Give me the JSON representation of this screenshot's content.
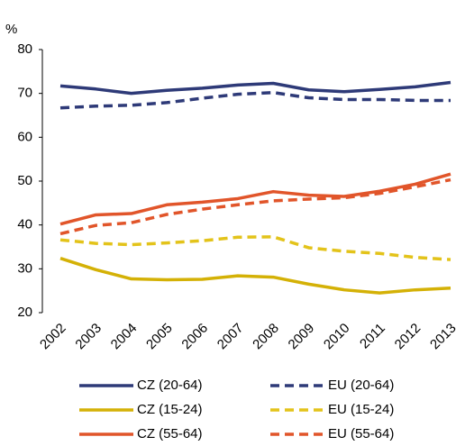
{
  "chart_data": {
    "type": "line",
    "y_label": "%",
    "categories": [
      "2002",
      "2003",
      "2004",
      "2005",
      "2006",
      "2007",
      "2008",
      "2009",
      "2010",
      "2011",
      "2012",
      "2013"
    ],
    "ylim": [
      20,
      80
    ],
    "yticks": [
      20,
      30,
      40,
      50,
      60,
      70,
      80
    ],
    "grid": false,
    "legend": "bottom",
    "series": [
      {
        "name": "CZ (20-64)",
        "color": "#2e3a78",
        "dash": false,
        "values": [
          71.7,
          71.0,
          70.0,
          70.7,
          71.2,
          71.9,
          72.3,
          70.8,
          70.4,
          70.9,
          71.5,
          72.5
        ]
      },
      {
        "name": "EU (20-64)",
        "color": "#2e3a78",
        "dash": true,
        "values": [
          66.7,
          67.1,
          67.3,
          67.9,
          68.9,
          69.8,
          70.2,
          69.0,
          68.6,
          68.6,
          68.4,
          68.4
        ]
      },
      {
        "name": "CZ (15-24)",
        "color": "#d4b106",
        "dash": false,
        "values": [
          32.4,
          29.8,
          27.7,
          27.5,
          27.6,
          28.4,
          28.1,
          26.5,
          25.2,
          24.5,
          25.2,
          25.6
        ]
      },
      {
        "name": "EU (15-24)",
        "color": "#e3c31a",
        "dash": true,
        "values": [
          36.6,
          35.8,
          35.5,
          35.9,
          36.4,
          37.2,
          37.3,
          34.8,
          34.0,
          33.5,
          32.6,
          32.1
        ]
      },
      {
        "name": "CZ (55-64)",
        "color": "#e1552a",
        "dash": false,
        "values": [
          40.2,
          42.3,
          42.6,
          44.6,
          45.2,
          46.0,
          47.6,
          46.8,
          46.5,
          47.7,
          49.3,
          51.6
        ]
      },
      {
        "name": "EU (55-64)",
        "color": "#e1552a",
        "dash": true,
        "values": [
          38.0,
          39.9,
          40.5,
          42.4,
          43.6,
          44.6,
          45.5,
          45.9,
          46.2,
          47.2,
          48.7,
          50.3
        ]
      }
    ]
  }
}
